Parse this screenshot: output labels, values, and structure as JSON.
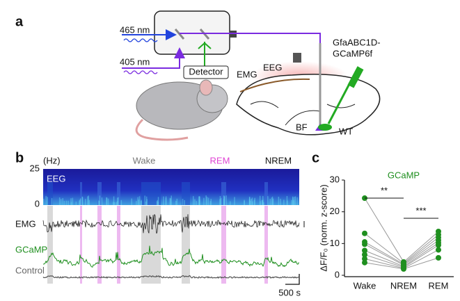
{
  "panels": {
    "a": {
      "label": "a",
      "laser_1": "465 nm",
      "laser_2": "405 nm",
      "detector": "Detector",
      "virus": "GfaABC1D-",
      "virus_2": "GCaMP6f",
      "eeg": "EEG",
      "emg": "EMG",
      "region": "BF",
      "genotype": "WT"
    },
    "b": {
      "label": "b",
      "freq_unit": "(Hz)",
      "freq_ticks": [
        "25",
        "0"
      ],
      "spectrogram": "EEG",
      "emg": "EMG",
      "signal": "GCaMP",
      "control": "Control",
      "states": [
        {
          "text": "Wake",
          "color": "#777777"
        },
        {
          "text": "REM",
          "color": "#e044d4"
        },
        {
          "text": "NREM",
          "color": "#111111"
        }
      ],
      "scale": "500 s"
    }
  },
  "chart_data": {
    "type": "paired-dot",
    "panel": "c",
    "title": "GCaMP",
    "title_color": "#1f8f1f",
    "y_label": "ΔF/F₀ (norm. z-score)",
    "categories": [
      "Wake",
      "NREM",
      "REM"
    ],
    "color": "#1f8f1f",
    "line_color": "#999999",
    "series": [
      {
        "values": [
          24.3,
          4.2,
          13.8
        ]
      },
      {
        "values": [
          13.2,
          3.8,
          12.8
        ]
      },
      {
        "values": [
          10.5,
          3.5,
          11.9
        ]
      },
      {
        "values": [
          9.8,
          3.2,
          11.0
        ]
      },
      {
        "values": [
          7.8,
          2.8,
          10.2
        ]
      },
      {
        "values": [
          6.5,
          2.5,
          9.5
        ]
      },
      {
        "values": [
          5.2,
          2.2,
          8.0
        ]
      },
      {
        "values": [
          4.0,
          2.0,
          5.5
        ]
      }
    ],
    "ylim": [
      0,
      30
    ],
    "yticks": [
      0,
      10,
      20,
      30
    ],
    "annotations": [
      "**",
      "***"
    ]
  }
}
